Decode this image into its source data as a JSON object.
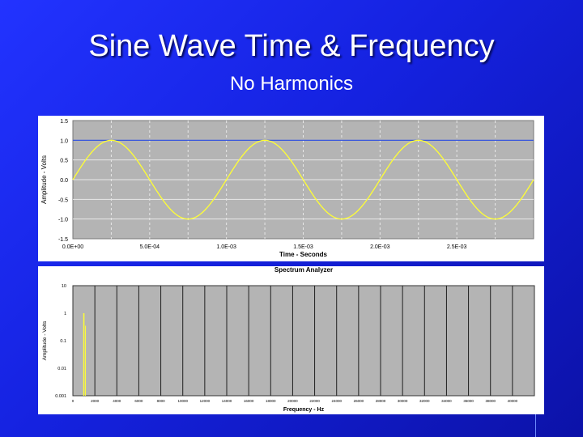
{
  "slide": {
    "title": "Sine Wave Time & Frequency",
    "subtitle": "No Harmonics"
  },
  "colors": {
    "background": "#1a28f0",
    "plot_area": "#b4b4b4",
    "signal": "#ffff33",
    "reference_line": "#2244dd",
    "gridline": "#e8e8e8",
    "bar_grid": "#202020"
  },
  "chart_data": [
    {
      "type": "line",
      "title": "",
      "xlabel": "Time - Seconds",
      "ylabel": "Amplitude - Volts",
      "xlim": [
        0,
        0.003
      ],
      "ylim": [
        -1.5,
        1.5
      ],
      "x_ticks": [
        "0.0E+00",
        "5.0E-04",
        "1.0E-03",
        "1.5E-03",
        "2.0E-03",
        "2.5E-03"
      ],
      "x_tick_values": [
        0,
        0.0005,
        0.001,
        0.0015,
        0.002,
        0.0025
      ],
      "y_ticks": [
        "1.5",
        "1.0",
        "0.5",
        "0.0",
        "-0.5",
        "-1.0",
        "-1.5"
      ],
      "y_tick_values": [
        1.5,
        1.0,
        0.5,
        0.0,
        -0.5,
        -1.0,
        -1.5
      ],
      "grid": true,
      "series": [
        {
          "signal": "sine",
          "amplitude": 1.0,
          "frequency_hz": 1000,
          "phase": 0,
          "color": "#ffff33"
        },
        {
          "signal": "constant",
          "value": 1.0,
          "color": "#2244dd"
        }
      ]
    },
    {
      "type": "bar",
      "title": "Spectrum Analyzer",
      "xlabel": "Frequency - Hz",
      "ylabel": "Amplitude - Volts",
      "log_y": true,
      "ylim": [
        0.001,
        10
      ],
      "y_ticks": [
        "10",
        "1",
        "0.1",
        "0.01",
        "0.001"
      ],
      "y_tick_values": [
        10,
        1,
        0.1,
        0.01,
        0.001
      ],
      "xlim": [
        0,
        42000
      ],
      "x_ticks": [
        "0",
        "2000",
        "4000",
        "6000",
        "8000",
        "10000",
        "12000",
        "14000",
        "16000",
        "18000",
        "20000",
        "22000",
        "24000",
        "26000",
        "28000",
        "30000",
        "32000",
        "34000",
        "36000",
        "38000",
        "40000"
      ],
      "x_tick_values": [
        0,
        2000,
        4000,
        6000,
        8000,
        10000,
        12000,
        14000,
        16000,
        18000,
        20000,
        22000,
        24000,
        26000,
        28000,
        30000,
        32000,
        34000,
        36000,
        38000,
        40000
      ],
      "grid": true,
      "peaks": [
        {
          "frequency": 1000,
          "value": 1.0
        }
      ]
    }
  ]
}
